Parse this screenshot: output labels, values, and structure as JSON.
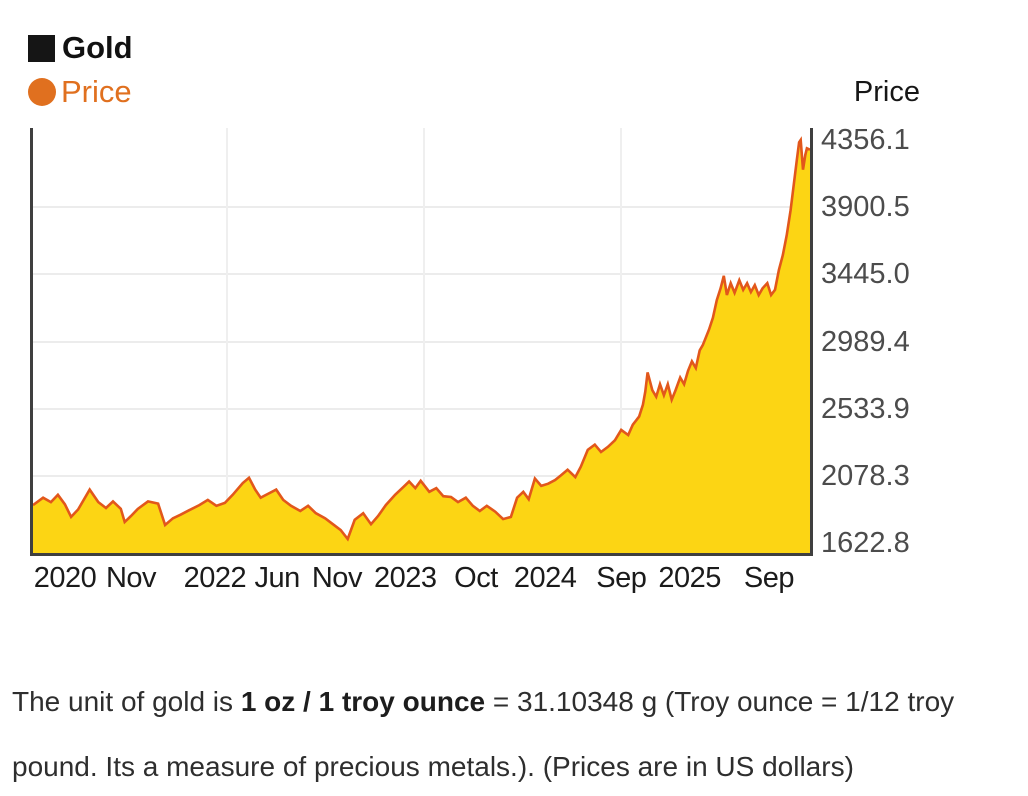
{
  "legend": {
    "series_label": "Gold",
    "price_label": "Price"
  },
  "y_axis_title": "Price",
  "caption": {
    "prefix": "The unit of gold is ",
    "bold": "1 oz / 1 troy ounce",
    "suffix": " = 31.10348 g (Troy ounce = 1/12 troy pound. Its a measure of precious metals.). (Prices are in US dollars)"
  },
  "colors": {
    "area_fill": "#fcd514",
    "price_line": "#e2571b",
    "legend_orange": "#e0701f",
    "gridline": "#ececec",
    "plot_border": "#3f3f3f"
  },
  "chart_data": {
    "type": "area",
    "title": "Gold Price",
    "unit": "USD per troy ounce",
    "grid": true,
    "legend_position": "top-left",
    "ylim": [
      1622.8,
      4356.1
    ],
    "y_ticks": [
      4356.1,
      3900.5,
      3445.0,
      2989.4,
      2533.9,
      2078.3,
      1622.8
    ],
    "x_ticks": [
      {
        "label": "2020",
        "pos": 0.045
      },
      {
        "label": "Nov",
        "pos": 0.13
      },
      {
        "label": "2022",
        "pos": 0.238
      },
      {
        "label": "Jun",
        "pos": 0.318
      },
      {
        "label": "Nov",
        "pos": 0.395
      },
      {
        "label": "2023",
        "pos": 0.483
      },
      {
        "label": "Oct",
        "pos": 0.574
      },
      {
        "label": "2024",
        "pos": 0.663
      },
      {
        "label": "Sep",
        "pos": 0.761
      },
      {
        "label": "2025",
        "pos": 0.849
      },
      {
        "label": "Sep",
        "pos": 0.951
      }
    ],
    "v_gridlines": [
      0.248,
      0.502,
      0.755
    ],
    "points": [
      [
        0.0,
        1880
      ],
      [
        0.013,
        1930
      ],
      [
        0.023,
        1900
      ],
      [
        0.032,
        1950
      ],
      [
        0.041,
        1885
      ],
      [
        0.049,
        1800
      ],
      [
        0.058,
        1850
      ],
      [
        0.073,
        1985
      ],
      [
        0.084,
        1900
      ],
      [
        0.094,
        1860
      ],
      [
        0.103,
        1905
      ],
      [
        0.113,
        1855
      ],
      [
        0.118,
        1765
      ],
      [
        0.126,
        1805
      ],
      [
        0.135,
        1855
      ],
      [
        0.148,
        1905
      ],
      [
        0.161,
        1890
      ],
      [
        0.17,
        1745
      ],
      [
        0.18,
        1790
      ],
      [
        0.19,
        1815
      ],
      [
        0.201,
        1845
      ],
      [
        0.214,
        1880
      ],
      [
        0.225,
        1915
      ],
      [
        0.236,
        1875
      ],
      [
        0.247,
        1895
      ],
      [
        0.257,
        1950
      ],
      [
        0.27,
        2030
      ],
      [
        0.278,
        2065
      ],
      [
        0.286,
        1985
      ],
      [
        0.293,
        1930
      ],
      [
        0.302,
        1955
      ],
      [
        0.313,
        1985
      ],
      [
        0.322,
        1915
      ],
      [
        0.332,
        1875
      ],
      [
        0.344,
        1840
      ],
      [
        0.354,
        1875
      ],
      [
        0.364,
        1825
      ],
      [
        0.376,
        1790
      ],
      [
        0.386,
        1750
      ],
      [
        0.396,
        1710
      ],
      [
        0.405,
        1650
      ],
      [
        0.414,
        1780
      ],
      [
        0.425,
        1825
      ],
      [
        0.435,
        1750
      ],
      [
        0.444,
        1805
      ],
      [
        0.454,
        1880
      ],
      [
        0.466,
        1950
      ],
      [
        0.476,
        2000
      ],
      [
        0.484,
        2040
      ],
      [
        0.492,
        1995
      ],
      [
        0.499,
        2045
      ],
      [
        0.51,
        1970
      ],
      [
        0.519,
        1995
      ],
      [
        0.528,
        1940
      ],
      [
        0.538,
        1935
      ],
      [
        0.547,
        1900
      ],
      [
        0.557,
        1930
      ],
      [
        0.566,
        1875
      ],
      [
        0.575,
        1840
      ],
      [
        0.584,
        1875
      ],
      [
        0.595,
        1835
      ],
      [
        0.605,
        1785
      ],
      [
        0.615,
        1800
      ],
      [
        0.623,
        1930
      ],
      [
        0.631,
        1970
      ],
      [
        0.638,
        1920
      ],
      [
        0.646,
        2060
      ],
      [
        0.654,
        2010
      ],
      [
        0.663,
        2025
      ],
      [
        0.672,
        2050
      ],
      [
        0.679,
        2080
      ],
      [
        0.688,
        2120
      ],
      [
        0.698,
        2070
      ],
      [
        0.705,
        2140
      ],
      [
        0.714,
        2255
      ],
      [
        0.723,
        2290
      ],
      [
        0.731,
        2240
      ],
      [
        0.74,
        2275
      ],
      [
        0.749,
        2320
      ],
      [
        0.757,
        2390
      ],
      [
        0.766,
        2355
      ],
      [
        0.772,
        2425
      ],
      [
        0.78,
        2480
      ],
      [
        0.785,
        2560
      ],
      [
        0.788,
        2650
      ],
      [
        0.791,
        2780
      ],
      [
        0.797,
        2660
      ],
      [
        0.802,
        2615
      ],
      [
        0.807,
        2700
      ],
      [
        0.812,
        2625
      ],
      [
        0.817,
        2700
      ],
      [
        0.822,
        2595
      ],
      [
        0.827,
        2660
      ],
      [
        0.833,
        2745
      ],
      [
        0.838,
        2700
      ],
      [
        0.843,
        2790
      ],
      [
        0.848,
        2855
      ],
      [
        0.853,
        2810
      ],
      [
        0.858,
        2930
      ],
      [
        0.862,
        2965
      ],
      [
        0.87,
        3070
      ],
      [
        0.875,
        3150
      ],
      [
        0.88,
        3270
      ],
      [
        0.885,
        3350
      ],
      [
        0.889,
        3435
      ],
      [
        0.893,
        3305
      ],
      [
        0.898,
        3385
      ],
      [
        0.903,
        3320
      ],
      [
        0.909,
        3405
      ],
      [
        0.914,
        3340
      ],
      [
        0.919,
        3385
      ],
      [
        0.924,
        3325
      ],
      [
        0.929,
        3372
      ],
      [
        0.934,
        3305
      ],
      [
        0.939,
        3350
      ],
      [
        0.945,
        3385
      ],
      [
        0.95,
        3305
      ],
      [
        0.955,
        3340
      ],
      [
        0.96,
        3475
      ],
      [
        0.965,
        3575
      ],
      [
        0.97,
        3710
      ],
      [
        0.975,
        3880
      ],
      [
        0.979,
        4050
      ],
      [
        0.983,
        4220
      ],
      [
        0.986,
        4340
      ],
      [
        0.988,
        4356
      ],
      [
        0.991,
        4155
      ],
      [
        0.994,
        4255
      ],
      [
        0.996,
        4300
      ],
      [
        1.0,
        4290
      ]
    ]
  }
}
